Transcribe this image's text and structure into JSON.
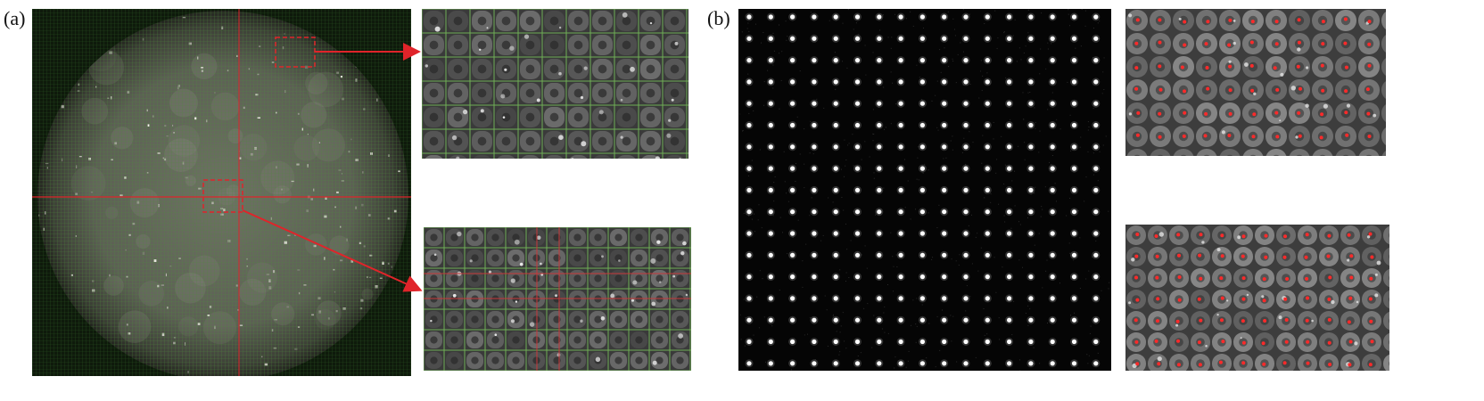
{
  "panels": [
    {
      "label": "(a)",
      "description_id": "microlens-array-raw-image",
      "colors": {
        "grid_line": "#5fa84a",
        "center_line": "#e0242a",
        "arrow": "#e0242a"
      }
    },
    {
      "label": "(b)",
      "description_id": "microlens-center-detection",
      "colors": {
        "spot": "#ffffff",
        "detected_center": "#ff2a2a"
      }
    }
  ]
}
